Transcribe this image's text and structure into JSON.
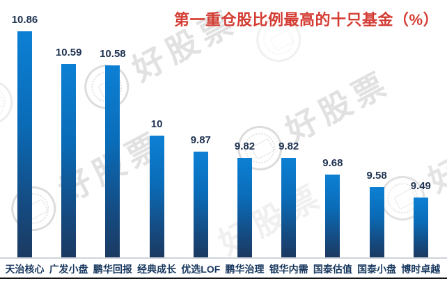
{
  "title": {
    "text": "第一重仓股比例最高的十只基金（%）",
    "color": "#d43c33"
  },
  "watermark": {
    "text": "好股票",
    "color": "#dcdcdc"
  },
  "chart_data": {
    "type": "bar",
    "title": "第一重仓股比例最高的十只基金（%）",
    "categories": [
      "天治核心",
      "广发小盘",
      "鹏华回报",
      "经典成长",
      "优选LOF",
      "鹏华治理",
      "银华内需",
      "国泰估值",
      "国泰小盘",
      "博时卓越"
    ],
    "values": [
      10.86,
      10.59,
      10.58,
      10,
      9.87,
      9.82,
      9.82,
      9.68,
      9.58,
      9.49
    ],
    "value_labels": [
      "10.86",
      "10.59",
      "10.58",
      "10",
      "9.87",
      "9.82",
      "9.82",
      "9.68",
      "9.58",
      "9.49"
    ],
    "xlabel": "",
    "ylabel": "",
    "ylim": [
      9.0,
      11.0
    ],
    "grid": false,
    "legend": "none",
    "y_axis_visible": false,
    "value_labels_position": "above-bars",
    "bar_color_top": "#0d80d4",
    "bar_color_bottom": "#1b3a61",
    "value_label_color": "#1e3150",
    "category_label_color": "#17375e",
    "axis_line_color": "#cfd3d8",
    "bottom_rule_color": "#121212"
  }
}
